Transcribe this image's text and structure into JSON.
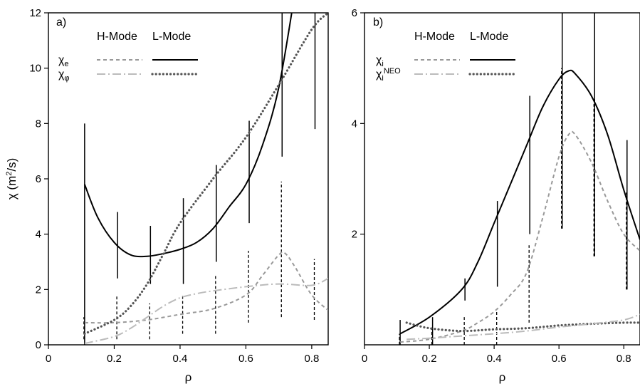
{
  "chart_data": [
    {
      "type": "line",
      "panel_label": "a)",
      "xlabel": "ρ",
      "ylabel": "χ (m²/s)",
      "ylabel_main": "χ (m",
      "ylabel_sup": "2",
      "ylabel_end": "/s)",
      "xlim": [
        0,
        0.85
      ],
      "ylim": [
        0,
        12
      ],
      "xticks": [
        0,
        0.2,
        0.4,
        0.6,
        0.8
      ],
      "xtick_labels": [
        "0",
        "0.2",
        "0.4",
        "0.6",
        "0.8"
      ],
      "yticks": [
        0,
        2,
        4,
        6,
        8,
        10,
        12
      ],
      "ytick_labels": [
        "0",
        "2",
        "4",
        "6",
        "8",
        "10",
        "12"
      ],
      "legend": {
        "headers": [
          "H-Mode",
          "L-Mode"
        ],
        "rows": [
          {
            "symbol": "χ",
            "sub": "e",
            "sup": ""
          },
          {
            "symbol": "χ",
            "sub": "φ",
            "sup": ""
          }
        ]
      },
      "series": [
        {
          "id": "chi_e_L",
          "style": "L-solid",
          "x": [
            0.11,
            0.15,
            0.2,
            0.25,
            0.3,
            0.35,
            0.4,
            0.45,
            0.5,
            0.55,
            0.6,
            0.65,
            0.7,
            0.75
          ],
          "y": [
            5.8,
            4.6,
            3.7,
            3.25,
            3.2,
            3.3,
            3.45,
            3.7,
            4.2,
            5.0,
            5.8,
            7.2,
            9.3,
            12.8
          ]
        },
        {
          "id": "chi_e_H",
          "style": "H-dash",
          "x": [
            0.11,
            0.2,
            0.3,
            0.4,
            0.5,
            0.6,
            0.65,
            0.7,
            0.72,
            0.75,
            0.8,
            0.85
          ],
          "y": [
            0.8,
            0.8,
            0.9,
            1.1,
            1.3,
            1.8,
            2.5,
            3.25,
            3.3,
            2.8,
            1.8,
            1.25
          ]
        },
        {
          "id": "chi_phi_L",
          "style": "L-dot",
          "x": [
            0.11,
            0.2,
            0.25,
            0.3,
            0.35,
            0.4,
            0.5,
            0.6,
            0.7,
            0.8,
            0.85
          ],
          "y": [
            0.4,
            0.9,
            1.4,
            2.2,
            3.3,
            4.4,
            6.0,
            7.5,
            9.4,
            11.4,
            12.0
          ]
        },
        {
          "id": "chi_phi_H",
          "style": "H-dashdot",
          "x": [
            0.11,
            0.2,
            0.25,
            0.3,
            0.35,
            0.4,
            0.45,
            0.5,
            0.6,
            0.7,
            0.8,
            0.85
          ],
          "y": [
            0.05,
            0.3,
            0.6,
            1.0,
            1.4,
            1.7,
            1.85,
            1.95,
            2.1,
            2.2,
            2.15,
            2.4
          ]
        }
      ],
      "error_bars": [
        {
          "x": 0.11,
          "L": [
            0.0,
            8.0
          ],
          "H": [
            0.2,
            1.0
          ]
        },
        {
          "x": 0.21,
          "L": [
            2.4,
            4.8
          ],
          "H": [
            0.2,
            1.8
          ]
        },
        {
          "x": 0.31,
          "L": [
            2.2,
            4.3
          ],
          "H": [
            0.2,
            1.5
          ]
        },
        {
          "x": 0.41,
          "L": [
            2.2,
            5.3
          ],
          "H": [
            0.4,
            1.8
          ]
        },
        {
          "x": 0.51,
          "L": [
            3.0,
            6.5
          ],
          "H": [
            0.4,
            2.5
          ]
        },
        {
          "x": 0.61,
          "L": [
            4.4,
            8.1
          ],
          "H": [
            0.8,
            3.4
          ]
        },
        {
          "x": 0.71,
          "L": [
            6.8,
            12.0
          ],
          "H": [
            1.0,
            5.9
          ]
        },
        {
          "x": 0.81,
          "L": [
            7.8,
            12.0
          ],
          "H": [
            0.9,
            3.1
          ]
        }
      ]
    },
    {
      "type": "line",
      "panel_label": "b)",
      "xlabel": "ρ",
      "ylabel": "",
      "xlim": [
        0,
        0.85
      ],
      "ylim": [
        0,
        6
      ],
      "xticks": [
        0,
        0.2,
        0.4,
        0.6,
        0.8
      ],
      "xtick_labels": [
        "0",
        "0.2",
        "0.4",
        "0.6",
        "0.8"
      ],
      "yticks": [
        2,
        4,
        6
      ],
      "ytick_labels": [
        "2",
        "4",
        "6"
      ],
      "legend": {
        "headers": [
          "H-Mode",
          "L-Mode"
        ],
        "rows": [
          {
            "symbol": "χ",
            "sub": "i",
            "sup": ""
          },
          {
            "symbol": "χ",
            "sub": "i",
            "sup": "NEO"
          }
        ]
      },
      "series": [
        {
          "id": "chi_i_L",
          "style": "L-solid",
          "x": [
            0.11,
            0.2,
            0.3,
            0.35,
            0.4,
            0.45,
            0.5,
            0.55,
            0.6,
            0.63,
            0.65,
            0.7,
            0.75,
            0.8,
            0.85
          ],
          "y": [
            0.2,
            0.5,
            1.0,
            1.5,
            2.2,
            2.9,
            3.6,
            4.3,
            4.8,
            4.95,
            4.9,
            4.5,
            3.8,
            2.8,
            1.9
          ]
        },
        {
          "id": "chi_i_H",
          "style": "H-dash",
          "x": [
            0.11,
            0.2,
            0.3,
            0.35,
            0.4,
            0.45,
            0.5,
            0.55,
            0.6,
            0.63,
            0.65,
            0.7,
            0.75,
            0.8,
            0.85
          ],
          "y": [
            0.05,
            0.1,
            0.25,
            0.4,
            0.6,
            0.9,
            1.3,
            2.3,
            3.4,
            3.8,
            3.8,
            3.3,
            2.6,
            2.0,
            1.7
          ]
        },
        {
          "id": "chi_neo_L",
          "style": "L-dot",
          "x": [
            0.13,
            0.2,
            0.3,
            0.4,
            0.5,
            0.6,
            0.7,
            0.8,
            0.85
          ],
          "y": [
            0.4,
            0.3,
            0.25,
            0.28,
            0.3,
            0.35,
            0.38,
            0.4,
            0.4
          ]
        },
        {
          "id": "chi_neo_H",
          "style": "H-dashdot",
          "x": [
            0.13,
            0.2,
            0.3,
            0.4,
            0.5,
            0.6,
            0.7,
            0.8,
            0.85
          ],
          "y": [
            0.1,
            0.12,
            0.16,
            0.2,
            0.25,
            0.32,
            0.38,
            0.45,
            0.55
          ]
        }
      ],
      "error_bars": [
        {
          "x": 0.11,
          "L": [
            0.0,
            0.45
          ],
          "H": [
            0.0,
            0.2
          ]
        },
        {
          "x": 0.21,
          "L": [
            0.0,
            0.5
          ],
          "H": [
            0.0,
            0.3
          ]
        },
        {
          "x": 0.31,
          "L": [
            0.8,
            1.2
          ],
          "H": [
            0.0,
            0.5
          ]
        },
        {
          "x": 0.41,
          "L": [
            1.05,
            2.6
          ],
          "H": [
            0.0,
            0.6
          ]
        },
        {
          "x": 0.51,
          "L": [
            2.0,
            4.5
          ],
          "H": [
            0.4,
            1.8
          ]
        },
        {
          "x": 0.61,
          "L": [
            2.1,
            6.0
          ],
          "H": [
            2.1,
            5.0
          ]
        },
        {
          "x": 0.71,
          "L": [
            1.6,
            6.0
          ],
          "H": [
            1.6,
            4.35
          ]
        },
        {
          "x": 0.81,
          "L": [
            1.0,
            3.7
          ],
          "H": [
            1.0,
            2.75
          ]
        }
      ]
    }
  ],
  "colors": {
    "L_mode": "#000000",
    "H_mode": "#999999",
    "dotted": "#555555",
    "dashdot": "#bbbbbb"
  }
}
